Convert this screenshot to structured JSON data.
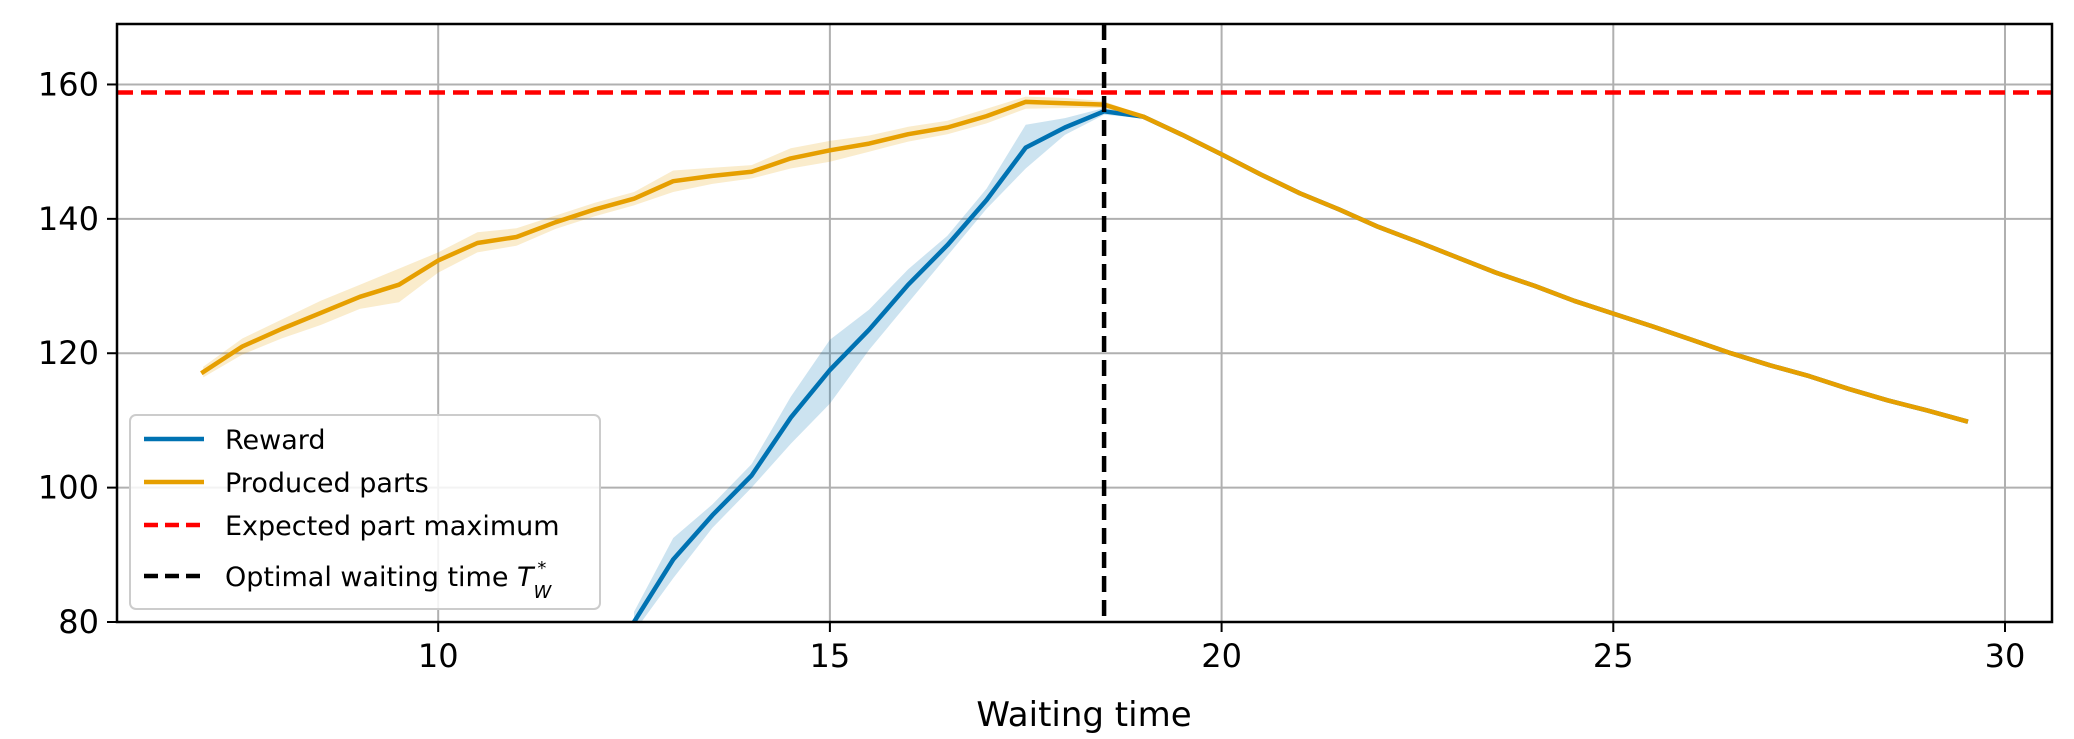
{
  "chart_data": {
    "type": "line",
    "title": "",
    "xlabel": "Waiting time",
    "ylabel": "",
    "xlim": [
      5.9,
      30.6
    ],
    "ylim": [
      80,
      169
    ],
    "xticks": [
      10,
      15,
      20,
      25,
      30
    ],
    "yticks": [
      80,
      100,
      120,
      140,
      160
    ],
    "grid": true,
    "legend_position": "lower-left",
    "series": [
      {
        "name": "Reward",
        "color": "#0072b2",
        "style": "solid",
        "x": [
          12.5,
          13.0,
          13.5,
          14.0,
          14.5,
          15.0,
          15.5,
          16.0,
          16.5,
          17.0,
          17.5,
          18.0,
          18.5,
          19.0,
          19.5,
          20.0,
          20.5,
          21.0,
          21.5,
          22.0,
          22.5,
          23.0,
          23.5,
          24.0,
          24.5,
          25.0,
          25.5,
          26.0,
          26.5,
          27.0,
          27.5,
          28.0,
          28.5,
          29.0,
          29.5
        ],
        "y": [
          80.0,
          89.3,
          95.9,
          101.8,
          110.4,
          117.5,
          123.5,
          130.2,
          136.1,
          142.8,
          150.6,
          153.6,
          156.0,
          155.2,
          152.5,
          149.6,
          146.6,
          143.8,
          141.4,
          138.8,
          136.6,
          134.3,
          132.0,
          130.0,
          127.8,
          125.9,
          124.0,
          122.0,
          120.0,
          118.2,
          116.6,
          114.7,
          113.0,
          111.5,
          109.9
        ],
        "band_low": [
          78.5,
          86.5,
          94.0,
          100.0,
          106.5,
          112.5,
          120.5,
          127.5,
          134.5,
          141.5,
          147.5,
          152.5,
          155.5,
          155.0,
          152.3,
          149.4,
          146.4,
          143.6,
          141.2,
          138.6,
          136.4,
          134.1,
          131.8,
          129.8,
          127.6,
          125.7,
          123.8,
          121.8,
          119.8,
          118.0,
          116.4,
          114.5,
          112.8,
          111.3,
          109.7
        ],
        "band_high": [
          81.5,
          92.5,
          97.5,
          103.5,
          113.5,
          122.0,
          126.5,
          132.5,
          137.5,
          144.5,
          154.0,
          155.0,
          156.5,
          155.4,
          152.7,
          149.8,
          146.8,
          144.0,
          141.6,
          139.0,
          136.8,
          134.5,
          132.2,
          130.2,
          128.0,
          126.1,
          124.2,
          122.2,
          120.2,
          118.4,
          116.8,
          114.9,
          113.2,
          111.7,
          110.1
        ]
      },
      {
        "name": "Produced parts",
        "color": "#e69f00",
        "style": "solid",
        "x": [
          7.0,
          7.5,
          8.0,
          8.5,
          9.0,
          9.5,
          10.0,
          10.5,
          11.0,
          11.5,
          12.0,
          12.5,
          13.0,
          13.5,
          14.0,
          14.5,
          15.0,
          15.5,
          16.0,
          16.5,
          17.0,
          17.5,
          18.0,
          18.5,
          19.0,
          19.5,
          20.0,
          20.5,
          21.0,
          21.5,
          22.0,
          22.5,
          23.0,
          23.5,
          24.0,
          24.5,
          25.0,
          25.5,
          26.0,
          26.5,
          27.0,
          27.5,
          28.0,
          28.5,
          29.0,
          29.5
        ],
        "y": [
          117.2,
          121.0,
          123.6,
          126.0,
          128.4,
          130.2,
          133.8,
          136.4,
          137.3,
          139.5,
          141.4,
          143.0,
          145.6,
          146.4,
          147.0,
          149.0,
          150.2,
          151.2,
          152.6,
          153.6,
          155.3,
          157.4,
          157.2,
          157.0,
          155.2,
          152.5,
          149.6,
          146.6,
          143.8,
          141.4,
          138.8,
          136.6,
          134.3,
          132.0,
          130.0,
          127.8,
          125.9,
          124.0,
          122.0,
          120.0,
          118.2,
          116.6,
          114.7,
          113.0,
          111.5,
          109.9
        ],
        "band_low": [
          116.4,
          119.8,
          122.2,
          124.2,
          126.6,
          127.6,
          132.0,
          135.0,
          136.0,
          138.5,
          140.4,
          142.0,
          144.0,
          145.2,
          146.0,
          147.5,
          148.5,
          150.0,
          151.5,
          152.6,
          154.2,
          156.4,
          156.5,
          156.5,
          155.0,
          152.3,
          149.4,
          146.4,
          143.6,
          141.2,
          138.6,
          136.4,
          134.1,
          131.8,
          129.8,
          127.6,
          125.7,
          123.8,
          121.8,
          119.8,
          118.0,
          116.4,
          114.5,
          112.8,
          111.3,
          109.7
        ],
        "band_high": [
          118.0,
          122.2,
          125.0,
          127.8,
          130.2,
          132.6,
          135.0,
          138.0,
          138.6,
          140.5,
          142.4,
          144.0,
          147.2,
          147.6,
          148.0,
          150.5,
          151.6,
          152.4,
          153.7,
          154.6,
          156.4,
          158.2,
          158.0,
          157.5,
          155.4,
          152.7,
          149.8,
          146.8,
          144.0,
          141.6,
          139.0,
          136.8,
          134.5,
          132.2,
          130.2,
          128.0,
          126.1,
          124.2,
          122.2,
          120.2,
          118.4,
          116.8,
          114.9,
          113.2,
          111.7,
          110.1
        ]
      }
    ],
    "reference_lines": [
      {
        "name": "Expected part maximum",
        "orientation": "horizontal",
        "value": 158.8,
        "color": "#ff0000",
        "style": "dashed"
      },
      {
        "name": "Optimal waiting time T*W",
        "orientation": "vertical",
        "value": 18.5,
        "color": "#000000",
        "style": "dashed"
      }
    ]
  }
}
